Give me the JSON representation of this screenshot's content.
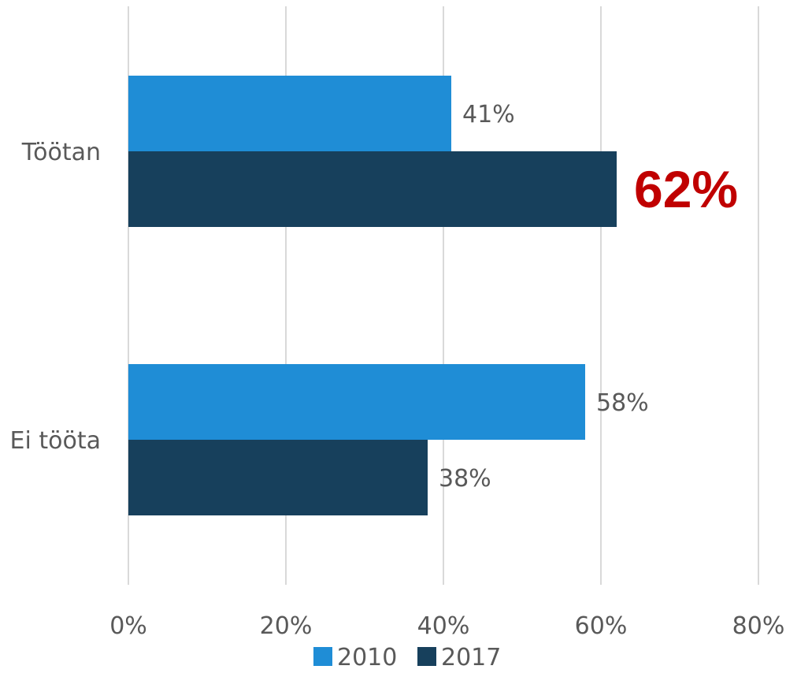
{
  "chart_data": {
    "type": "bar",
    "orientation": "horizontal",
    "categories": [
      "Töötan",
      "Ei tööta"
    ],
    "series": [
      {
        "name": "2010",
        "values": [
          41,
          58
        ],
        "color": "#1f8dd6"
      },
      {
        "name": "2017",
        "values": [
          62,
          38
        ],
        "color": "#17405c"
      }
    ],
    "value_labels": [
      [
        "41%",
        "58%"
      ],
      [
        "62%",
        "38%"
      ]
    ],
    "highlight": {
      "series": 1,
      "category": 0,
      "color": "#c00000"
    },
    "xlim": [
      0,
      80
    ],
    "xticks": [
      0,
      20,
      40,
      60,
      80
    ],
    "xtick_labels": [
      "0%",
      "20%",
      "40%",
      "60%",
      "80%"
    ],
    "grid": true,
    "legend": "bottom",
    "title": "",
    "xlabel": "",
    "ylabel": ""
  }
}
